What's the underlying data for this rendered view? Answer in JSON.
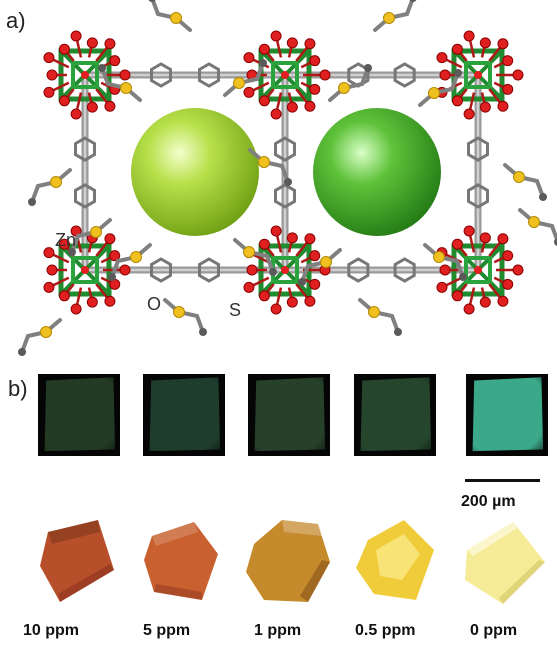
{
  "panels": {
    "a": {
      "label": "a)"
    },
    "b": {
      "label": "b)"
    }
  },
  "atoms": {
    "zn": "Zn",
    "o": "O",
    "s": "S"
  },
  "scale_bar": {
    "label": "200 µm"
  },
  "samples": [
    {
      "concentration": "10 ppm",
      "fluorescence": "#233a24",
      "crystal": "#b7502a"
    },
    {
      "concentration": "5 ppm",
      "fluorescence": "#1f3d2c",
      "crystal": "#c8602f"
    },
    {
      "concentration": "1 ppm",
      "fluorescence": "#26402a",
      "crystal": "#c58a2c"
    },
    {
      "concentration": "0.5 ppm",
      "fluorescence": "#25452d",
      "crystal": "#f0cc3a"
    },
    {
      "concentration": "0 ppm",
      "fluorescence": "#3aa889",
      "crystal": "#f6ec98"
    }
  ],
  "colors": {
    "zinc": "#1f8a2e",
    "oxygen": "#e02020",
    "sulfur": "#f0c020",
    "carbon": "#808080",
    "pore_left": "#a8d42a",
    "pore_right": "#4cb52c"
  }
}
